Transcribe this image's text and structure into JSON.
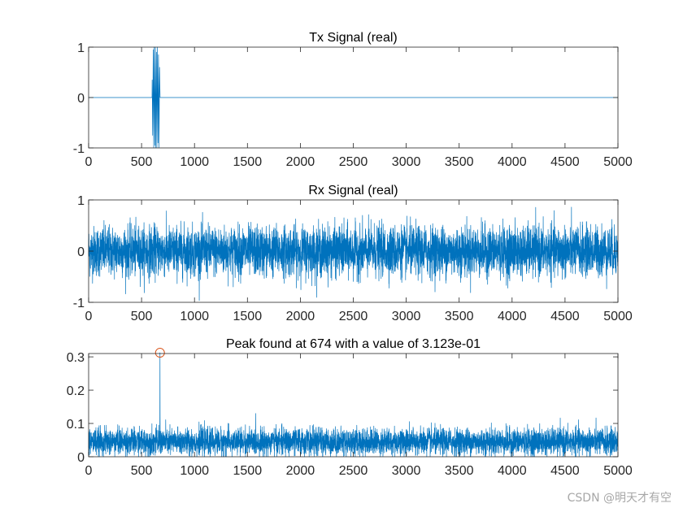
{
  "chart_data": [
    {
      "type": "line",
      "title": "Tx Signal (real)",
      "xlim": [
        0,
        5000
      ],
      "ylim": [
        -1,
        1
      ],
      "xticks": [
        0,
        500,
        1000,
        1500,
        2000,
        2500,
        3000,
        3500,
        4000,
        4500,
        5000
      ],
      "yticks": [
        -1,
        0,
        1
      ],
      "series": [
        {
          "color": "#0072BD",
          "description_of_shape": "zero except a short burst of full-scale oscillation",
          "x": [
            0,
            599,
            600,
            605,
            610,
            615,
            620,
            625,
            630,
            635,
            640,
            645,
            650,
            655,
            660,
            665,
            670,
            674,
            675,
            5000
          ],
          "y": [
            0,
            0,
            0.35,
            -0.75,
            0.95,
            -1.0,
            1.0,
            -0.95,
            1.0,
            -1.0,
            0.9,
            -1.0,
            1.0,
            -0.9,
            0.85,
            -1.0,
            0.6,
            0.1,
            0,
            0
          ]
        }
      ]
    },
    {
      "type": "line",
      "title": "Rx Signal (real)",
      "xlim": [
        0,
        5000
      ],
      "ylim": [
        -1,
        1
      ],
      "xticks": [
        0,
        500,
        1000,
        1500,
        2000,
        2500,
        3000,
        3500,
        4000,
        4500,
        5000
      ],
      "yticks": [
        -1,
        0,
        1
      ],
      "series": [
        {
          "color": "#0072BD",
          "noise": {
            "n": 5000,
            "mean": 0,
            "std": 0.24,
            "clip": [
              -1,
              1
            ]
          }
        }
      ]
    },
    {
      "type": "line",
      "title": "Peak found at 674 with a value of 3.123e-01",
      "xlim": [
        0,
        5000
      ],
      "ylim": [
        0,
        0.31
      ],
      "xticks": [
        0,
        500,
        1000,
        1500,
        2000,
        2500,
        3000,
        3500,
        4000,
        4500,
        5000
      ],
      "yticks": [
        0,
        0.1,
        0.2,
        0.3
      ],
      "series": [
        {
          "color": "#0072BD",
          "noise": {
            "n": 5000,
            "mean": 0.045,
            "std": 0.02,
            "clip": [
              0,
              0.13
            ]
          }
        }
      ],
      "peak": {
        "x": 674,
        "y": 0.3123,
        "marker_color": "#D95319"
      }
    }
  ],
  "watermark": "CSDN @明天才有空"
}
